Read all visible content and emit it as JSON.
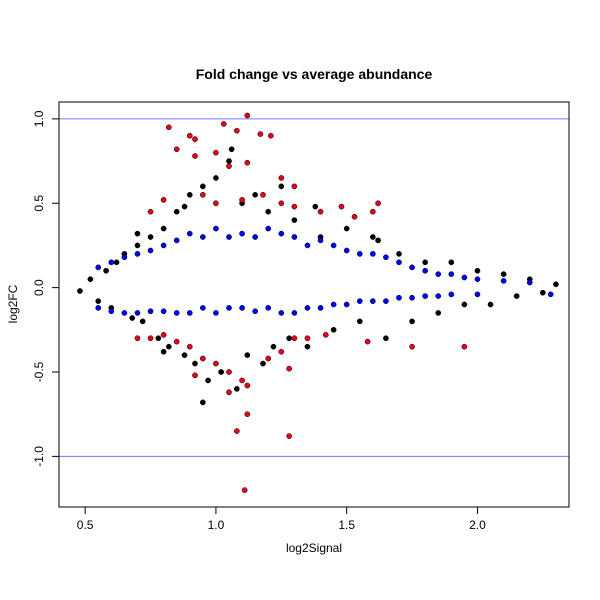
{
  "chart_data": {
    "type": "scatter",
    "title": "Fold change vs average abundance",
    "xlabel": "log2Signal",
    "ylabel": "log2FC",
    "xlim": [
      0.4,
      2.35
    ],
    "ylim": [
      -1.3,
      1.1
    ],
    "x_ticks": [
      0.5,
      1.0,
      1.5,
      2.0
    ],
    "x_tick_labels": [
      "0.5",
      "1.0",
      "1.5",
      "2.0"
    ],
    "y_ticks": [
      -1.0,
      -0.5,
      0.0,
      0.5,
      1.0
    ],
    "y_tick_labels": [
      "-1.0",
      "-0.5",
      "0.0",
      "0.5",
      "1.0"
    ],
    "reference_lines": [
      {
        "y": 1.0,
        "color": "#7777ff"
      },
      {
        "y": -1.0,
        "color": "#7777ff"
      }
    ],
    "series": [
      {
        "color": "#000000",
        "points": [
          [
            0.48,
            -0.02
          ],
          [
            0.52,
            0.05
          ],
          [
            0.55,
            -0.08
          ],
          [
            0.58,
            0.1
          ],
          [
            0.6,
            -0.12
          ],
          [
            0.62,
            0.15
          ],
          [
            0.65,
            0.2
          ],
          [
            0.68,
            -0.18
          ],
          [
            0.7,
            0.25
          ],
          [
            0.72,
            -0.2
          ],
          [
            0.75,
            0.3
          ],
          [
            0.78,
            -0.3
          ],
          [
            0.8,
            0.35
          ],
          [
            0.82,
            -0.35
          ],
          [
            0.85,
            0.45
          ],
          [
            0.88,
            -0.4
          ],
          [
            0.9,
            0.55
          ],
          [
            0.92,
            -0.45
          ],
          [
            0.95,
            0.6
          ],
          [
            0.97,
            -0.55
          ],
          [
            1.0,
            0.65
          ],
          [
            1.02,
            -0.5
          ],
          [
            1.05,
            0.75
          ],
          [
            1.08,
            -0.6
          ],
          [
            1.1,
            0.5
          ],
          [
            1.12,
            -0.4
          ],
          [
            1.15,
            0.55
          ],
          [
            1.18,
            -0.45
          ],
          [
            1.2,
            0.45
          ],
          [
            1.22,
            -0.35
          ],
          [
            1.25,
            0.6
          ],
          [
            1.28,
            -0.3
          ],
          [
            1.3,
            0.4
          ],
          [
            1.35,
            -0.35
          ],
          [
            1.4,
            0.3
          ],
          [
            1.45,
            -0.25
          ],
          [
            1.5,
            0.35
          ],
          [
            1.55,
            -0.2
          ],
          [
            1.6,
            0.3
          ],
          [
            1.65,
            -0.3
          ],
          [
            1.7,
            0.2
          ],
          [
            1.75,
            -0.2
          ],
          [
            1.8,
            0.15
          ],
          [
            1.85,
            -0.15
          ],
          [
            1.9,
            0.15
          ],
          [
            1.95,
            -0.1
          ],
          [
            2.0,
            0.1
          ],
          [
            2.05,
            -0.1
          ],
          [
            2.1,
            0.08
          ],
          [
            2.15,
            -0.05
          ],
          [
            2.2,
            0.05
          ],
          [
            2.25,
            -0.03
          ],
          [
            2.3,
            0.02
          ],
          [
            0.95,
            -0.68
          ],
          [
            1.06,
            0.82
          ],
          [
            0.7,
            0.32
          ],
          [
            0.88,
            0.48
          ],
          [
            1.38,
            0.48
          ],
          [
            1.62,
            0.28
          ],
          [
            0.8,
            -0.38
          ]
        ]
      },
      {
        "color": "#0000ff",
        "points": [
          [
            0.55,
            0.12
          ],
          [
            0.6,
            0.15
          ],
          [
            0.65,
            0.18
          ],
          [
            0.7,
            0.2
          ],
          [
            0.75,
            0.22
          ],
          [
            0.8,
            0.25
          ],
          [
            0.85,
            0.28
          ],
          [
            0.9,
            0.32
          ],
          [
            0.95,
            0.3
          ],
          [
            1.0,
            0.35
          ],
          [
            1.05,
            0.3
          ],
          [
            1.1,
            0.32
          ],
          [
            1.15,
            0.3
          ],
          [
            1.2,
            0.35
          ],
          [
            1.25,
            0.32
          ],
          [
            1.3,
            0.3
          ],
          [
            1.35,
            0.25
          ],
          [
            1.4,
            0.28
          ],
          [
            1.45,
            0.25
          ],
          [
            1.5,
            0.22
          ],
          [
            1.55,
            0.2
          ],
          [
            1.6,
            0.2
          ],
          [
            1.65,
            0.18
          ],
          [
            1.7,
            0.15
          ],
          [
            1.75,
            0.12
          ],
          [
            1.8,
            0.1
          ],
          [
            1.85,
            0.08
          ],
          [
            1.9,
            0.08
          ],
          [
            1.95,
            0.06
          ],
          [
            2.0,
            0.05
          ],
          [
            2.1,
            0.04
          ],
          [
            2.2,
            0.03
          ],
          [
            2.28,
            -0.04
          ],
          [
            0.55,
            -0.12
          ],
          [
            0.6,
            -0.14
          ],
          [
            0.65,
            -0.15
          ],
          [
            0.7,
            -0.15
          ],
          [
            0.75,
            -0.14
          ],
          [
            0.8,
            -0.14
          ],
          [
            0.85,
            -0.15
          ],
          [
            0.9,
            -0.15
          ],
          [
            0.95,
            -0.12
          ],
          [
            1.0,
            -0.15
          ],
          [
            1.05,
            -0.12
          ],
          [
            1.1,
            -0.12
          ],
          [
            1.15,
            -0.14
          ],
          [
            1.2,
            -0.12
          ],
          [
            1.25,
            -0.15
          ],
          [
            1.3,
            -0.15
          ],
          [
            1.35,
            -0.12
          ],
          [
            1.4,
            -0.12
          ],
          [
            1.45,
            -0.1
          ],
          [
            1.5,
            -0.1
          ],
          [
            1.55,
            -0.08
          ],
          [
            1.6,
            -0.08
          ],
          [
            1.65,
            -0.08
          ],
          [
            1.7,
            -0.06
          ],
          [
            1.75,
            -0.06
          ],
          [
            1.8,
            -0.05
          ],
          [
            1.85,
            -0.05
          ],
          [
            1.9,
            -0.04
          ],
          [
            2.0,
            -0.04
          ]
        ]
      },
      {
        "color": "#e8001c",
        "points": [
          [
            0.82,
            0.95
          ],
          [
            0.9,
            0.9
          ],
          [
            0.92,
            0.88
          ],
          [
            1.03,
            0.97
          ],
          [
            1.08,
            0.93
          ],
          [
            1.12,
            1.02
          ],
          [
            1.17,
            0.91
          ],
          [
            1.21,
            0.9
          ],
          [
            0.85,
            0.82
          ],
          [
            0.92,
            0.78
          ],
          [
            1.0,
            0.8
          ],
          [
            1.05,
            0.72
          ],
          [
            1.12,
            0.74
          ],
          [
            1.25,
            0.65
          ],
          [
            1.3,
            0.6
          ],
          [
            0.75,
            0.45
          ],
          [
            0.8,
            0.52
          ],
          [
            0.95,
            0.55
          ],
          [
            1.0,
            0.5
          ],
          [
            1.1,
            0.52
          ],
          [
            1.18,
            0.55
          ],
          [
            1.25,
            0.5
          ],
          [
            1.3,
            0.48
          ],
          [
            1.4,
            0.45
          ],
          [
            1.48,
            0.48
          ],
          [
            1.53,
            0.42
          ],
          [
            1.6,
            0.45
          ],
          [
            1.62,
            0.5
          ],
          [
            0.7,
            -0.3
          ],
          [
            0.75,
            -0.3
          ],
          [
            0.8,
            -0.28
          ],
          [
            0.85,
            -0.32
          ],
          [
            0.9,
            -0.35
          ],
          [
            0.95,
            -0.42
          ],
          [
            1.0,
            -0.45
          ],
          [
            1.05,
            -0.5
          ],
          [
            1.1,
            -0.55
          ],
          [
            1.2,
            -0.42
          ],
          [
            1.25,
            -0.38
          ],
          [
            1.3,
            -0.3
          ],
          [
            1.35,
            -0.3
          ],
          [
            1.42,
            -0.28
          ],
          [
            1.58,
            -0.32
          ],
          [
            1.75,
            -0.35
          ],
          [
            1.95,
            -0.35
          ],
          [
            0.92,
            -0.52
          ],
          [
            1.05,
            -0.62
          ],
          [
            1.12,
            -0.58
          ],
          [
            1.28,
            -0.48
          ],
          [
            1.08,
            -0.85
          ],
          [
            1.28,
            -0.88
          ],
          [
            1.12,
            -0.75
          ],
          [
            1.11,
            -1.2
          ]
        ]
      }
    ]
  }
}
